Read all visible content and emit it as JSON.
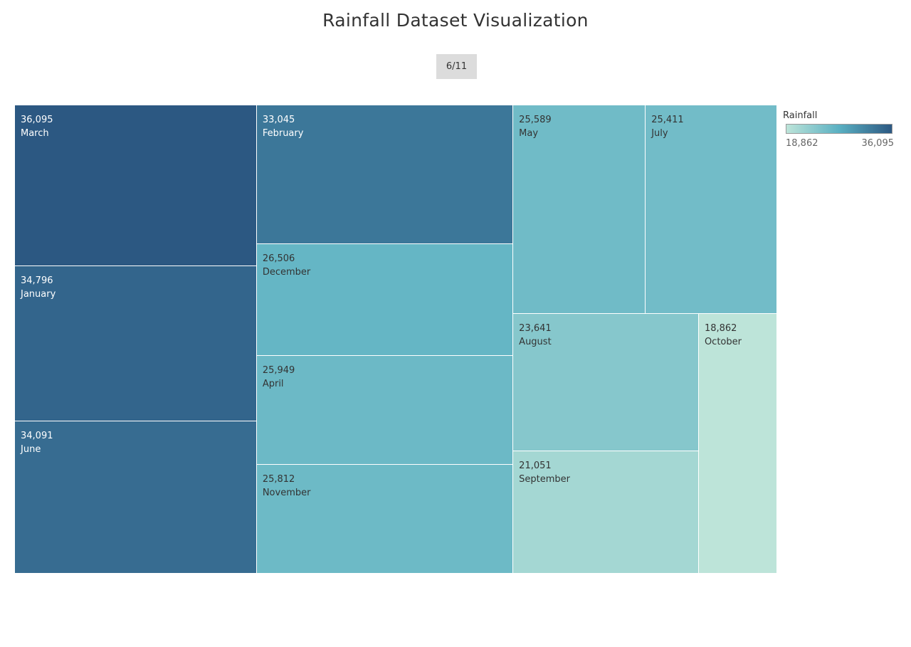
{
  "title": "Rainfall Dataset Visualization",
  "page_indicator": "6/11",
  "colors": {
    "min": "#bde4d9",
    "mid": "#5ab0c2",
    "max": "#2c5882"
  },
  "legend": {
    "title": "Rainfall",
    "min_label": "18,862",
    "max_label": "36,095"
  },
  "chart_data": {
    "type": "treemap",
    "measure": "Rainfall",
    "color_range": [
      18862,
      36095
    ],
    "items": [
      {
        "label": "March",
        "value": 36095,
        "value_label": "36,095"
      },
      {
        "label": "January",
        "value": 34796,
        "value_label": "34,796"
      },
      {
        "label": "June",
        "value": 34091,
        "value_label": "34,091"
      },
      {
        "label": "February",
        "value": 33045,
        "value_label": "33,045"
      },
      {
        "label": "December",
        "value": 26506,
        "value_label": "26,506"
      },
      {
        "label": "April",
        "value": 25949,
        "value_label": "25,949"
      },
      {
        "label": "November",
        "value": 25812,
        "value_label": "25,812"
      },
      {
        "label": "May",
        "value": 25589,
        "value_label": "25,589"
      },
      {
        "label": "July",
        "value": 25411,
        "value_label": "25,411"
      },
      {
        "label": "August",
        "value": 23641,
        "value_label": "23,641"
      },
      {
        "label": "September",
        "value": 21051,
        "value_label": "21,051"
      },
      {
        "label": "October",
        "value": 18862,
        "value_label": "18,862"
      }
    ]
  }
}
